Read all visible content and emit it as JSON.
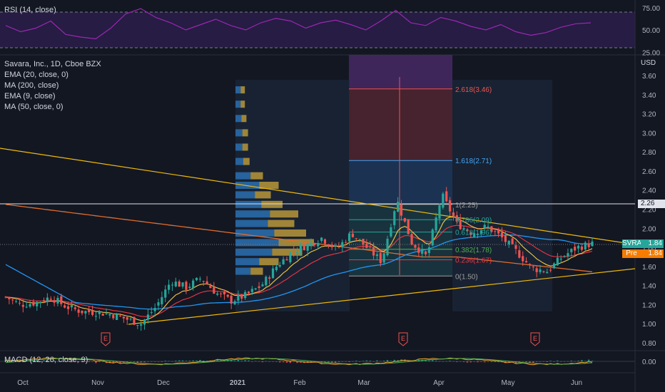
{
  "rsi_legend": "RSI (14, close)",
  "macd_legend": "MACD (12, 26, close, 9)",
  "main_legend": [
    "Savara, Inc., 1D, Cboe BZX",
    "EMA (20, close, 0)",
    "MA (200, close)",
    "EMA (9, close)",
    "MA (50, close, 0)"
  ],
  "price_axis": {
    "currency": "USD",
    "ticks": [
      "3.60",
      "3.40",
      "3.20",
      "3.00",
      "2.80",
      "2.60",
      "2.40",
      "2.20",
      "2.00",
      "1.80",
      "1.60",
      "1.40",
      "1.20",
      "1.00",
      "0.80"
    ],
    "level_label": "2.26",
    "ticker_label": "SVRA",
    "ticker_price": "1.84",
    "pre_label": "Pre",
    "pre_price": "1.84"
  },
  "rsi_axis": [
    "75.00",
    "50.00",
    "25.00"
  ],
  "macd_axis": [
    "0.00"
  ],
  "time_axis": [
    "Oct",
    "Nov",
    "Dec",
    "2021",
    "Feb",
    "Mar",
    "Apr",
    "May",
    "Jun"
  ],
  "earnings_marker": "E",
  "fib_labels": [
    "2.618(3.46)",
    "1.618(2.71)",
    "1(2.25)",
    "0.786(2.09)",
    "0.618(1.96)",
    "0.382(1.78)",
    "0.236(1.67)",
    "0(1.50)"
  ],
  "colors": {
    "background": "#131722",
    "up": "#26a69a",
    "down": "#ef5350",
    "ema20": "#f23645",
    "ma200": "#e06c2d",
    "ema9": "#f7c948",
    "ma50": "#2196f3",
    "trendline": "#f0b90b",
    "rsi": "#9c27b0",
    "macd": "#f5a623",
    "signal": "#4caf50"
  },
  "chart_data": {
    "type": "candlestick",
    "title": "Savara, Inc., 1D, Cboe BZX",
    "ylabel": "USD",
    "ylim": [
      0.7,
      3.7
    ],
    "last_price": 1.84,
    "horizontal_level": 2.26,
    "months": [
      "Oct",
      "Nov",
      "Dec",
      "2021",
      "Feb",
      "Mar",
      "Apr",
      "May",
      "Jun"
    ],
    "close_path": [
      {
        "x": "Sep 25",
        "y": 1.28
      },
      {
        "x": "Oct 1",
        "y": 1.2
      },
      {
        "x": "Oct 8",
        "y": 1.22
      },
      {
        "x": "Oct 15",
        "y": 1.28
      },
      {
        "x": "Oct 22",
        "y": 1.18
      },
      {
        "x": "Oct 29",
        "y": 1.13
      },
      {
        "x": "Nov 5",
        "y": 1.12
      },
      {
        "x": "Nov 12",
        "y": 1.1
      },
      {
        "x": "Nov 19",
        "y": 1.05
      },
      {
        "x": "Nov 24",
        "y": 1.0
      },
      {
        "x": "Nov 30",
        "y": 1.18
      },
      {
        "x": "Dec 3",
        "y": 1.45
      },
      {
        "x": "Dec 10",
        "y": 1.38
      },
      {
        "x": "Dec 17",
        "y": 1.48
      },
      {
        "x": "Dec 24",
        "y": 1.32
      },
      {
        "x": "Dec 31",
        "y": 1.24
      },
      {
        "x": "Jan 7",
        "y": 1.3
      },
      {
        "x": "Jan 14",
        "y": 1.4
      },
      {
        "x": "Jan 21",
        "y": 1.6
      },
      {
        "x": "Jan 28",
        "y": 1.75
      },
      {
        "x": "Feb 4",
        "y": 1.82
      },
      {
        "x": "Feb 11",
        "y": 1.9
      },
      {
        "x": "Feb 18",
        "y": 1.78
      },
      {
        "x": "Feb 25",
        "y": 1.95
      },
      {
        "x": "Mar 4",
        "y": 1.8
      },
      {
        "x": "Mar 11",
        "y": 1.65
      },
      {
        "x": "Mar 16",
        "y": 2.3
      },
      {
        "x": "Mar 23",
        "y": 1.85
      },
      {
        "x": "Mar 30",
        "y": 1.7
      },
      {
        "x": "Apr 6",
        "y": 2.35
      },
      {
        "x": "Apr 9",
        "y": 2.05
      },
      {
        "x": "Apr 16",
        "y": 1.95
      },
      {
        "x": "Apr 23",
        "y": 2.02
      },
      {
        "x": "Apr 30",
        "y": 1.9
      },
      {
        "x": "May 7",
        "y": 1.75
      },
      {
        "x": "May 14",
        "y": 1.58
      },
      {
        "x": "May 21",
        "y": 1.55
      },
      {
        "x": "May 28",
        "y": 1.7
      },
      {
        "x": "Jun 2",
        "y": 1.8
      },
      {
        "x": "Jun 4",
        "y": 1.84
      }
    ],
    "fibonacci": [
      {
        "ratio": 2.618,
        "price": 3.46
      },
      {
        "ratio": 1.618,
        "price": 2.71
      },
      {
        "ratio": 1,
        "price": 2.25
      },
      {
        "ratio": 0.786,
        "price": 2.09
      },
      {
        "ratio": 0.618,
        "price": 1.96
      },
      {
        "ratio": 0.382,
        "price": 1.78
      },
      {
        "ratio": 0.236,
        "price": 1.67
      },
      {
        "ratio": 0,
        "price": 1.5
      }
    ],
    "rsi_ylim": [
      25,
      80
    ],
    "rsi_levels": [
      70,
      30
    ],
    "rsi_path": [
      55,
      48,
      52,
      60,
      45,
      42,
      40,
      52,
      68,
      74,
      64,
      58,
      50,
      56,
      62,
      55,
      50,
      58,
      63,
      60,
      52,
      58,
      61,
      56,
      50,
      60,
      72,
      58,
      55,
      64,
      60,
      54,
      50,
      56,
      48,
      44,
      47,
      53,
      57,
      58
    ],
    "macd_level": 0.0
  }
}
